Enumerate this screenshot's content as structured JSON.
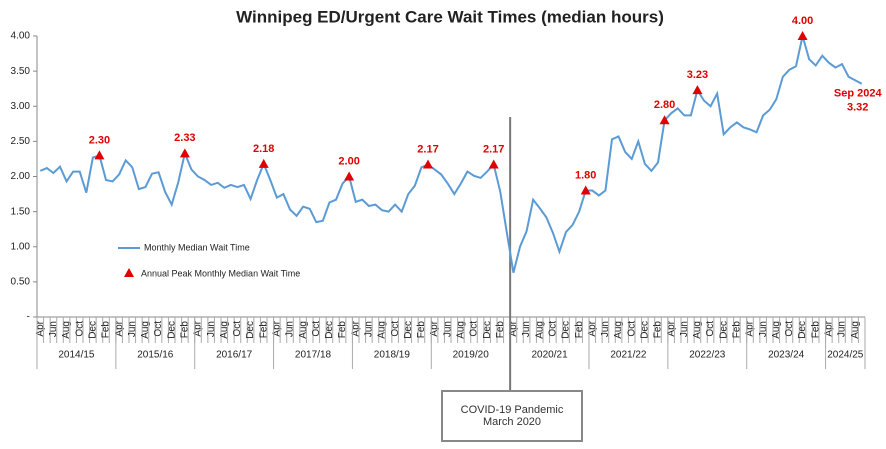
{
  "chart_data": {
    "type": "line",
    "title": "Winnipeg ED/Urgent Care Wait Times (median hours)",
    "categories": [
      "Apr",
      null,
      "Jun",
      null,
      "Aug",
      null,
      "Oct",
      null,
      "Dec",
      null,
      "Feb",
      null,
      "Apr",
      null,
      "Jun",
      null,
      "Aug",
      null,
      "Oct",
      null,
      "Dec",
      null,
      "Feb",
      null,
      "Apr",
      null,
      "Jun",
      null,
      "Aug",
      null,
      "Oct",
      null,
      "Dec",
      null,
      "Feb",
      null,
      "Apr",
      null,
      "Jun",
      null,
      "Aug",
      null,
      "Oct",
      null,
      "Dec",
      null,
      "Feb",
      null,
      "Apr",
      null,
      "Jun",
      null,
      "Aug",
      null,
      "Oct",
      null,
      "Dec",
      null,
      "Feb",
      null,
      "Apr",
      null,
      "Jun",
      null,
      "Aug",
      null,
      "Oct",
      null,
      "Dec",
      null,
      "Feb",
      null,
      "Apr",
      null,
      "Jun",
      null,
      "Aug",
      null,
      "Oct",
      null,
      "Dec",
      null,
      "Feb",
      null,
      "Apr",
      null,
      "Jun",
      null,
      "Aug",
      null,
      "Oct",
      null,
      "Dec",
      null,
      "Feb",
      null,
      "Apr",
      null,
      "Jun",
      null,
      "Aug",
      null,
      "Oct",
      null,
      "Dec",
      null,
      "Feb",
      null,
      "Apr",
      null,
      "Jun",
      null,
      "Aug",
      null,
      "Oct",
      null,
      "Dec",
      null,
      "Feb",
      null,
      "Apr",
      null,
      "Jun",
      null,
      "Aug",
      null
    ],
    "groups": [
      "2014/15",
      "2015/16",
      "2016/17",
      "2017/18",
      "2018/19",
      "2019/20",
      "2020/21",
      "2021/22",
      "2022/23",
      "2023/24",
      "2024/25"
    ],
    "series": [
      {
        "name": "Monthly Median Wait Time",
        "color": "#5b9bd5",
        "values": [
          2.08,
          2.12,
          2.05,
          2.14,
          1.93,
          2.07,
          2.07,
          1.77,
          2.27,
          2.3,
          1.95,
          1.93,
          2.03,
          2.23,
          2.13,
          1.82,
          1.85,
          2.04,
          2.06,
          1.78,
          1.6,
          1.92,
          2.33,
          2.1,
          2.0,
          1.95,
          1.88,
          1.91,
          1.84,
          1.88,
          1.85,
          1.88,
          1.68,
          1.95,
          2.18,
          1.95,
          1.7,
          1.75,
          1.53,
          1.44,
          1.57,
          1.54,
          1.35,
          1.37,
          1.63,
          1.67,
          1.9,
          2.0,
          1.64,
          1.67,
          1.58,
          1.6,
          1.52,
          1.5,
          1.6,
          1.5,
          1.75,
          1.87,
          2.13,
          2.17,
          2.1,
          2.03,
          1.9,
          1.75,
          1.9,
          2.07,
          2.01,
          1.98,
          2.07,
          2.17,
          1.78,
          1.2,
          0.63,
          1.0,
          1.22,
          1.67,
          1.55,
          1.42,
          1.2,
          0.93,
          1.21,
          1.31,
          1.5,
          1.8,
          1.8,
          1.73,
          1.8,
          2.53,
          2.57,
          2.35,
          2.25,
          2.5,
          2.18,
          2.08,
          2.2,
          2.8,
          2.9,
          2.97,
          2.87,
          2.87,
          3.23,
          3.08,
          3.0,
          3.18,
          2.6,
          2.7,
          2.77,
          2.7,
          2.67,
          2.63,
          2.87,
          2.95,
          3.1,
          3.42,
          3.52,
          3.57,
          4.0,
          3.67,
          3.58,
          3.72,
          3.62,
          3.55,
          3.6,
          3.42,
          3.37,
          3.32
        ],
        "value_labels": [
          null,
          null,
          null,
          null,
          null,
          null,
          null,
          null,
          null,
          null,
          null,
          null,
          null,
          null,
          null,
          null,
          null,
          null,
          null,
          null,
          null,
          null,
          null,
          null,
          null,
          null,
          null,
          null,
          null,
          null,
          null,
          null,
          null,
          null,
          null,
          null,
          null,
          null,
          null,
          null,
          null,
          null,
          null,
          null,
          null,
          null,
          null,
          null,
          null,
          null,
          null,
          null,
          null,
          null,
          null,
          null,
          null,
          null,
          null,
          null,
          null,
          null,
          null,
          null,
          null,
          null,
          null,
          null,
          null,
          null,
          null,
          null,
          null,
          null,
          null,
          null,
          null,
          null,
          null,
          null,
          null,
          null,
          null,
          null,
          null,
          null,
          null,
          null,
          null,
          null,
          null,
          null,
          null,
          null,
          null,
          null,
          null,
          null,
          null,
          null,
          null,
          null,
          null,
          null,
          null,
          null,
          null,
          null,
          null,
          null,
          null,
          null,
          null,
          null,
          null,
          null,
          null,
          null,
          null,
          null,
          null,
          null,
          null,
          null,
          null,
          "3.32"
        ]
      },
      {
        "name": "Annual Peak Monthly Median Wait Time",
        "color": "#e00000",
        "values": [
          null,
          null,
          null,
          null,
          null,
          null,
          null,
          null,
          null,
          2.3,
          null,
          null,
          null,
          null,
          null,
          null,
          null,
          null,
          null,
          null,
          null,
          null,
          2.33,
          null,
          null,
          null,
          null,
          null,
          null,
          null,
          null,
          null,
          null,
          null,
          2.18,
          null,
          null,
          null,
          null,
          null,
          null,
          null,
          null,
          null,
          null,
          null,
          null,
          2.0,
          null,
          null,
          null,
          null,
          null,
          null,
          null,
          null,
          null,
          null,
          null,
          2.17,
          null,
          null,
          null,
          null,
          null,
          null,
          null,
          null,
          null,
          2.17,
          null,
          null,
          null,
          null,
          null,
          null,
          null,
          null,
          null,
          null,
          null,
          null,
          null,
          1.8,
          null,
          null,
          null,
          null,
          null,
          null,
          null,
          null,
          null,
          null,
          null,
          2.8,
          null,
          null,
          null,
          null,
          3.23,
          null,
          null,
          null,
          null,
          null,
          null,
          null,
          null,
          null,
          null,
          null,
          null,
          null,
          null,
          null,
          4.0,
          null,
          null,
          null,
          null,
          null,
          null,
          null,
          null,
          null
        ],
        "value_labels": [
          null,
          null,
          null,
          null,
          null,
          null,
          null,
          null,
          null,
          "2.30",
          null,
          null,
          null,
          null,
          null,
          null,
          null,
          null,
          null,
          null,
          null,
          null,
          "2.33",
          null,
          null,
          null,
          null,
          null,
          null,
          null,
          null,
          null,
          null,
          null,
          "2.18",
          null,
          null,
          null,
          null,
          null,
          null,
          null,
          null,
          null,
          null,
          null,
          null,
          "2.00",
          null,
          null,
          null,
          null,
          null,
          null,
          null,
          null,
          null,
          null,
          null,
          "2.17",
          null,
          null,
          null,
          null,
          null,
          null,
          null,
          null,
          null,
          "2.17",
          null,
          null,
          null,
          null,
          null,
          null,
          null,
          null,
          null,
          null,
          null,
          null,
          null,
          "1.80",
          null,
          null,
          null,
          null,
          null,
          null,
          null,
          null,
          null,
          null,
          null,
          "2.80",
          null,
          null,
          null,
          null,
          "3.23",
          null,
          null,
          null,
          null,
          null,
          null,
          null,
          null,
          null,
          null,
          null,
          null,
          null,
          null,
          null,
          "4.00",
          null,
          null,
          null,
          null,
          null,
          null,
          null,
          null,
          null
        ]
      }
    ],
    "ylim": [
      0,
      4
    ],
    "yticks": [
      {
        "value": 0,
        "label": "-"
      },
      {
        "value": 0.5,
        "label": "0.50"
      },
      {
        "value": 1,
        "label": "1.00"
      },
      {
        "value": 1.5,
        "label": "1.50"
      },
      {
        "value": 2,
        "label": "2.00"
      },
      {
        "value": 2.5,
        "label": "2.50"
      },
      {
        "value": 3,
        "label": "3.00"
      },
      {
        "value": 3.5,
        "label": "3.50"
      },
      {
        "value": 4,
        "label": "4.00"
      }
    ],
    "grid": false,
    "annotations": [
      {
        "text": "Sep 2024"
      },
      {
        "text": "COVID-19 Pandemic March 2020"
      }
    ]
  }
}
